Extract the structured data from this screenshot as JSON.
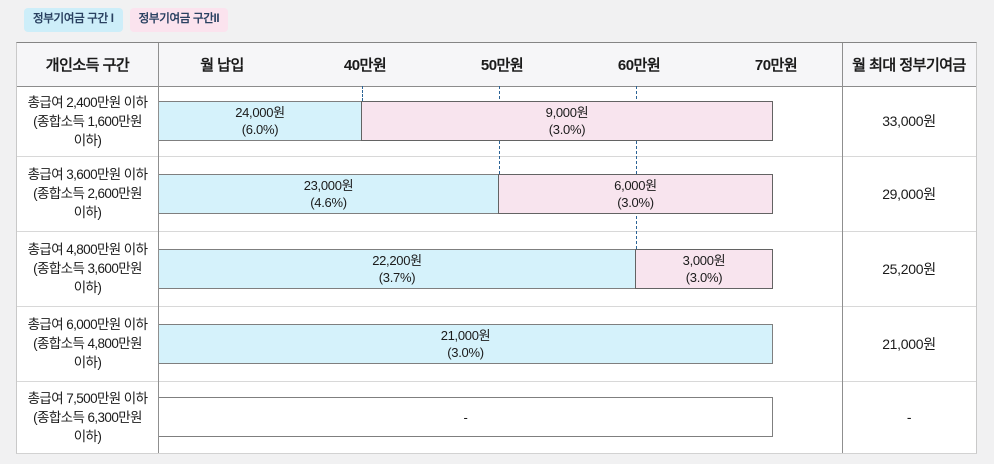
{
  "legend": {
    "zone1_label": "정부기여금 구간 I",
    "zone2_label": "정부기여금 구간II"
  },
  "table": {
    "header": {
      "income_col": "개인소득 구간",
      "deposit_col": "월 납입",
      "max_col": "월 최대 정부기여금",
      "ticks": [
        {
          "value": 40,
          "label": "40만원"
        },
        {
          "value": 50,
          "label": "50만원"
        },
        {
          "value": 60,
          "label": "60만원"
        },
        {
          "value": 70,
          "label": "70만원"
        }
      ]
    },
    "rows": [
      {
        "income_lines": [
          "총급여 2,400만원 이하",
          "(종합소득 1,600만원",
          "이하)"
        ],
        "segments": [
          {
            "zone": "I",
            "from": 0,
            "to": 40,
            "amount": "24,000원",
            "rate": "(6.0%)"
          },
          {
            "zone": "II",
            "from": 40,
            "to": 70,
            "amount": "9,000원",
            "rate": "(3.0%)"
          }
        ],
        "max": "33,000원"
      },
      {
        "income_lines": [
          "총급여 3,600만원 이하",
          "(종합소득 2,600만원",
          "이하)"
        ],
        "segments": [
          {
            "zone": "I",
            "from": 0,
            "to": 50,
            "amount": "23,000원",
            "rate": "(4.6%)"
          },
          {
            "zone": "II",
            "from": 50,
            "to": 70,
            "amount": "6,000원",
            "rate": "(3.0%)"
          }
        ],
        "max": "29,000원"
      },
      {
        "income_lines": [
          "총급여 4,800만원 이하",
          "(종합소득 3,600만원",
          "이하)"
        ],
        "segments": [
          {
            "zone": "I",
            "from": 0,
            "to": 60,
            "amount": "22,200원",
            "rate": "(3.7%)"
          },
          {
            "zone": "II",
            "from": 60,
            "to": 70,
            "amount": "3,000원",
            "rate": "(3.0%)"
          }
        ],
        "max": "25,200원"
      },
      {
        "income_lines": [
          "총급여 6,000만원 이하",
          "(종합소득 4,800만원",
          "이하)"
        ],
        "segments": [
          {
            "zone": "I",
            "from": 0,
            "to": 70,
            "amount": "21,000원",
            "rate": "(3.0%)"
          }
        ],
        "max": "21,000원"
      },
      {
        "income_lines": [
          "총급여 7,500만원 이하",
          "(종합소득 6,300만원",
          "이하)"
        ],
        "segments": [
          {
            "zone": "none",
            "from": 0,
            "to": 70,
            "amount": "-",
            "rate": ""
          }
        ],
        "max": "-"
      }
    ]
  },
  "colors": {
    "zone1_fill": "#d5f2fb",
    "zone2_fill": "#f8e4ee",
    "empty_fill": "#ffffff",
    "zone1_badge": "#cdeef9",
    "zone2_badge": "#fbe3ee",
    "zone1_border": "#7f7f7f",
    "zone2_border": "#636363",
    "dashed_line": "#2c6496"
  },
  "chart_data": {
    "type": "bar",
    "orientation": "horizontal-stacked",
    "title": "",
    "x_axis_label": "월 납입",
    "x_ticks": [
      "40만원",
      "50만원",
      "60만원",
      "70만원"
    ],
    "x_tick_values_manwon": [
      40,
      50,
      60,
      70
    ],
    "x_range_manwon": [
      0,
      70
    ],
    "legend": [
      "정부기여금 구간 I",
      "정부기여금 구간II"
    ],
    "legend_position": "top-left",
    "grid": "dashed vertical lines at 40/50/60만원",
    "categories": [
      "총급여 2,400만원 이하 (종합소득 1,600만원 이하)",
      "총급여 3,600만원 이하 (종합소득 2,600만원 이하)",
      "총급여 4,800만원 이하 (종합소득 3,600만원 이하)",
      "총급여 6,000만원 이하 (종합소득 4,800만원 이하)",
      "총급여 7,500만원 이하 (종합소득 6,300만원 이하)"
    ],
    "series": [
      {
        "name": "정부기여금 구간 I",
        "segments": [
          {
            "row": 0,
            "deposit_range_manwon": [
              0,
              40
            ],
            "amount": "24,000원",
            "rate": "6.0%"
          },
          {
            "row": 1,
            "deposit_range_manwon": [
              0,
              50
            ],
            "amount": "23,000원",
            "rate": "4.6%"
          },
          {
            "row": 2,
            "deposit_range_manwon": [
              0,
              60
            ],
            "amount": "22,200원",
            "rate": "3.7%"
          },
          {
            "row": 3,
            "deposit_range_manwon": [
              0,
              70
            ],
            "amount": "21,000원",
            "rate": "3.0%"
          },
          {
            "row": 4,
            "deposit_range_manwon": [
              0,
              70
            ],
            "amount": "-",
            "rate": null
          }
        ]
      },
      {
        "name": "정부기여금 구간II",
        "segments": [
          {
            "row": 0,
            "deposit_range_manwon": [
              40,
              70
            ],
            "amount": "9,000원",
            "rate": "3.0%"
          },
          {
            "row": 1,
            "deposit_range_manwon": [
              50,
              70
            ],
            "amount": "6,000원",
            "rate": "3.0%"
          },
          {
            "row": 2,
            "deposit_range_manwon": [
              60,
              70
            ],
            "amount": "3,000원",
            "rate": "3.0%"
          }
        ]
      }
    ],
    "monthly_max_column_label": "월 최대 정부기여금",
    "monthly_max_values": [
      "33,000원",
      "29,000원",
      "25,200원",
      "21,000원",
      "-"
    ]
  }
}
